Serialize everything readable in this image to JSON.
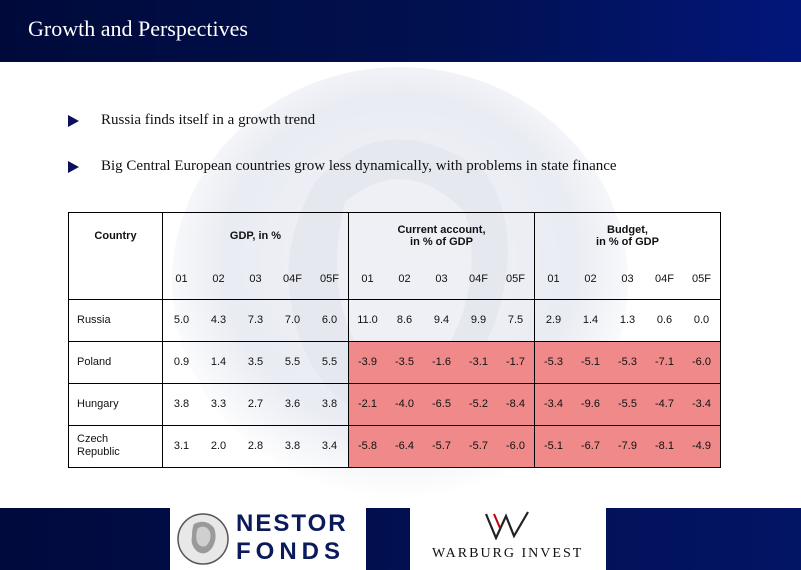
{
  "header": {
    "title": "Growth and Perspectives"
  },
  "bullets": [
    "Russia finds itself in a growth trend",
    "Big Central European countries grow less dynamically, with problems in state finance"
  ],
  "table": {
    "country_header": "Country",
    "groups": {
      "gdp": "GDP, in %",
      "current_account_line1": "Current account,",
      "current_account_line2": "in % of GDP",
      "budget_line1": "Budget,",
      "budget_line2": "in % of GDP"
    },
    "years": [
      "01",
      "02",
      "03",
      "04F",
      "05F"
    ],
    "rows": [
      {
        "country": "Russia",
        "gdp": [
          "5.0",
          "4.3",
          "7.3",
          "7.0",
          "6.0"
        ],
        "ca": [
          "11.0",
          "8.6",
          "9.4",
          "9.9",
          "7.5"
        ],
        "budget": [
          "2.9",
          "1.4",
          "1.3",
          "0.6",
          "0.0"
        ]
      },
      {
        "country": "Poland",
        "gdp": [
          "0.9",
          "1.4",
          "3.5",
          "5.5",
          "5.5"
        ],
        "ca": [
          "-3.9",
          "-3.5",
          "-1.6",
          "-3.1",
          "-1.7"
        ],
        "budget": [
          "-5.3",
          "-5.1",
          "-5.3",
          "-7.1",
          "-6.0"
        ]
      },
      {
        "country": "Hungary",
        "gdp": [
          "3.8",
          "3.3",
          "2.7",
          "3.6",
          "3.8"
        ],
        "ca": [
          "-2.1",
          "-4.0",
          "-6.5",
          "-5.2",
          "-8.4"
        ],
        "budget": [
          "-3.4",
          "-9.6",
          "-5.5",
          "-4.7",
          "-3.4"
        ]
      },
      {
        "country_line1": "Czech",
        "country_line2": "Republic",
        "gdp": [
          "3.1",
          "2.0",
          "2.8",
          "3.8",
          "3.4"
        ],
        "ca": [
          "-5.8",
          "-6.4",
          "-5.7",
          "-5.7",
          "-6.0"
        ],
        "budget": [
          "-5.1",
          "-6.7",
          "-7.9",
          "-8.1",
          "-4.9"
        ]
      }
    ]
  },
  "footer": {
    "logo_left_line1": "NESTOR",
    "logo_left_line2": "FONDS",
    "logo_right": "Warburg Invest"
  },
  "colors": {
    "title_bar": "#01104f",
    "negative_fill": "#f08a8a",
    "bullet_arrow": "#0a1060"
  },
  "icons": [
    "bullet-arrow-icon",
    "nestor-coin-logo-icon",
    "warburg-invest-logo-icon"
  ]
}
